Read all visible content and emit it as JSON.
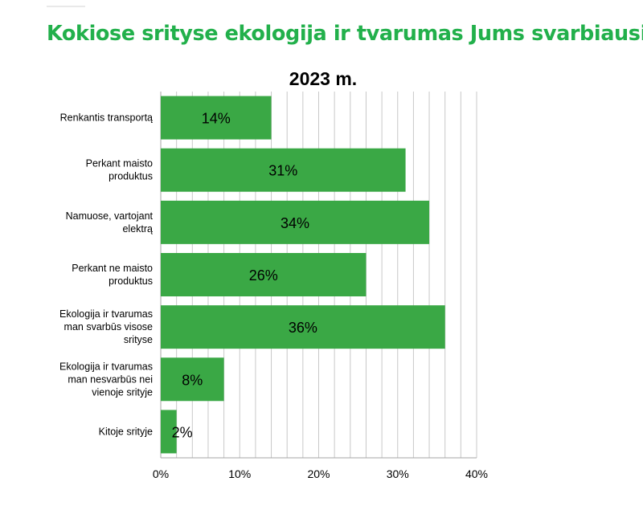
{
  "title": "Kokiose srityse ekologija ir tvarumas Jums svarbiausi?",
  "colors": {
    "title": "#22b04b",
    "bar": "#3aa845",
    "grid": "#c8c8c8",
    "axis": "#a6a6a6"
  },
  "chart_data": {
    "type": "bar",
    "orientation": "horizontal",
    "title": "2023 m.",
    "categories": [
      [
        "Renkantis transportą"
      ],
      [
        "Perkant maisto",
        "produktus"
      ],
      [
        "Namuose, vartojant",
        "elektrą"
      ],
      [
        "Perkant ne maisto",
        "produktus"
      ],
      [
        "Ekologija ir tvarumas",
        "man svarbūs visose",
        "srityse"
      ],
      [
        "Ekologija ir tvarumas",
        "man nesvarbūs nei",
        "vienoje srityje"
      ],
      [
        "Kitoje srityje"
      ]
    ],
    "values": [
      14,
      31,
      34,
      26,
      36,
      8,
      2
    ],
    "data_labels": [
      "14%",
      "31%",
      "34%",
      "26%",
      "36%",
      "8%",
      "2%"
    ],
    "xlim": [
      0,
      40
    ],
    "x_ticks": [
      0,
      10,
      20,
      30,
      40
    ],
    "x_tick_labels": [
      "0%",
      "10%",
      "20%",
      "30%",
      "40%"
    ],
    "xlabel": "",
    "ylabel": "",
    "grid": true,
    "legend": "none"
  }
}
